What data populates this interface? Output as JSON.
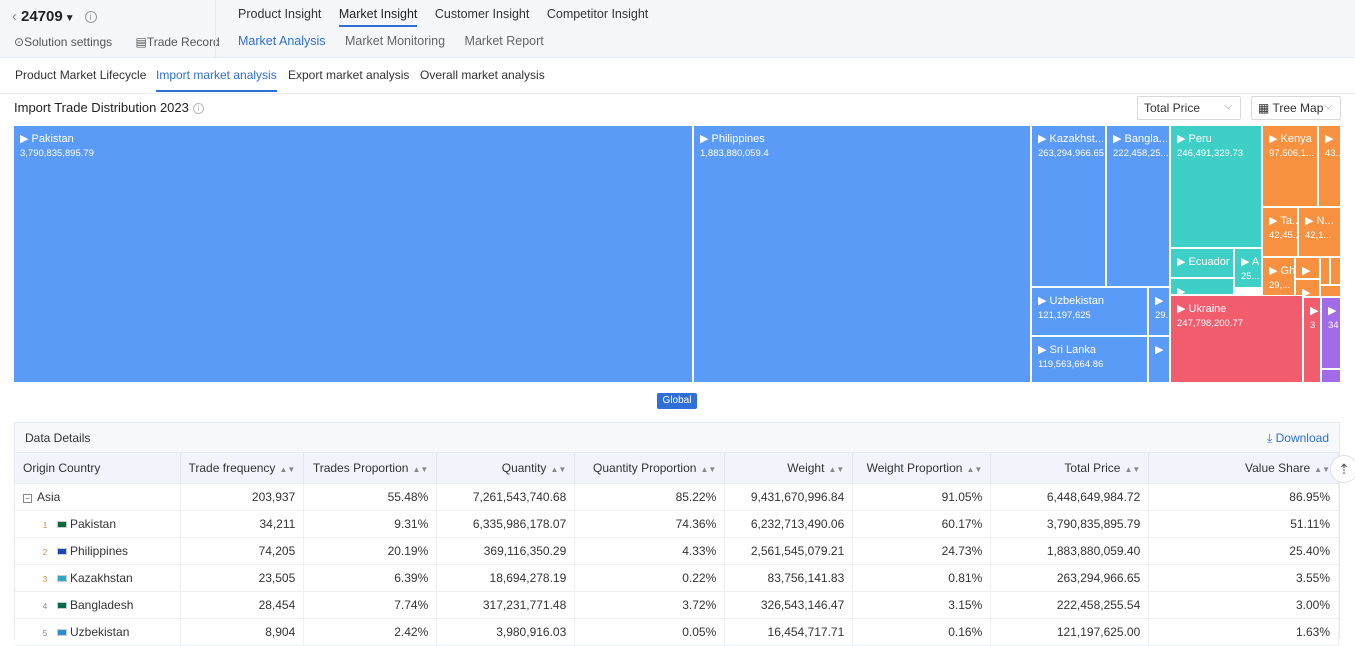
{
  "header": {
    "code": "24709",
    "settings_label": "Solution settings",
    "trade_record_label": "Trade Record",
    "main_tabs": [
      "Product Insight",
      "Market Insight",
      "Customer Insight",
      "Competitor Insight"
    ],
    "sub_tabs": [
      "Market Analysis",
      "Market Monitoring",
      "Market Report"
    ]
  },
  "analysis_tabs": [
    "Product Market Lifecycle",
    "Import market analysis",
    "Export market analysis",
    "Overall market analysis"
  ],
  "section": {
    "title": "Import Trade Distribution 2023",
    "metric_select": "Total Price",
    "view_select": "Tree Map",
    "global_label": "Global"
  },
  "treemap": [
    {
      "name": "▶ Pakistan",
      "value": "3,790,835,895.79",
      "color": "#5b9bf8"
    },
    {
      "name": "▶ Philippines",
      "value": "1,883,880,059.4",
      "color": "#5b9bf8"
    },
    {
      "name": "▶ Kazakhst...",
      "value": "263,294,966.65",
      "color": "#5b9bf8"
    },
    {
      "name": "▶ Bangla...",
      "value": "222,458,25...",
      "color": "#5b9bf8"
    },
    {
      "name": "▶ Uzbekistan",
      "value": "121,197,625",
      "color": "#5b9bf8"
    },
    {
      "name": "▶",
      "value": "29...",
      "color": "#5b9bf8"
    },
    {
      "name": "▶ Sri Lanka",
      "value": "119,563,664.86",
      "color": "#5b9bf8"
    },
    {
      "name": "▶",
      "value": "",
      "color": "#5b9bf8"
    },
    {
      "name": "▶ Peru",
      "value": "246,491,329.73",
      "color": "#3ecfc6"
    },
    {
      "name": "▶ Ecuador",
      "value": "",
      "color": "#3ecfc6"
    },
    {
      "name": "▶ A",
      "value": "25...",
      "color": "#3ecfc6"
    },
    {
      "name": "▶",
      "value": "",
      "color": "#3ecfc6"
    },
    {
      "name": "▶ Kenya",
      "value": "97,506,1...",
      "color": "#f7913f"
    },
    {
      "name": "▶",
      "value": "43...",
      "color": "#f7913f"
    },
    {
      "name": "▶ Ta...",
      "value": "42,45...",
      "color": "#f7913f"
    },
    {
      "name": "▶ N...",
      "value": "42,1...",
      "color": "#f7913f"
    },
    {
      "name": "▶ Gh",
      "value": "29,...",
      "color": "#f7913f"
    },
    {
      "name": "▶",
      "value": "",
      "color": "#f7913f"
    },
    {
      "name": "",
      "value": "",
      "color": "#f7913f"
    },
    {
      "name": "",
      "value": "",
      "color": "#f7913f"
    },
    {
      "name": "▶",
      "value": "",
      "color": "#f7913f"
    },
    {
      "name": "",
      "value": "",
      "color": "#f7913f"
    },
    {
      "name": "▶ Ukraine",
      "value": "247,798,200.77",
      "color": "#f25d6e"
    },
    {
      "name": "▶",
      "value": "3",
      "color": "#f25d6e"
    },
    {
      "name": "▶",
      "value": "34",
      "color": "#a26be8"
    },
    {
      "name": "",
      "value": "",
      "color": "#a26be8"
    }
  ],
  "details": {
    "title": "Data Details",
    "download_label": "Download",
    "columns": [
      "Origin Country",
      "Trade frequency",
      "Trades Proportion",
      "Quantity",
      "Quantity Proportion",
      "Weight",
      "Weight Proportion",
      "Total Price",
      "Value Share"
    ],
    "rows": [
      {
        "rank": "",
        "name": "Asia",
        "values": [
          "203,937",
          "55.48%",
          "7,261,543,740.68",
          "85.22%",
          "9,431,670,996.84",
          "91.05%",
          "6,448,649,984.72",
          "86.95%"
        ]
      },
      {
        "rank": "1",
        "name": "Pakistan",
        "values": [
          "34,211",
          "9.31%",
          "6,335,986,178.07",
          "74.36%",
          "6,232,713,490.06",
          "60.17%",
          "3,790,835,895.79",
          "51.11%"
        ]
      },
      {
        "rank": "2",
        "name": "Philippines",
        "values": [
          "74,205",
          "20.19%",
          "369,116,350.29",
          "4.33%",
          "2,561,545,079.21",
          "24.73%",
          "1,883,880,059.40",
          "25.40%"
        ]
      },
      {
        "rank": "3",
        "name": "Kazakhstan",
        "values": [
          "23,505",
          "6.39%",
          "18,694,278.19",
          "0.22%",
          "83,756,141.83",
          "0.81%",
          "263,294,966.65",
          "3.55%"
        ]
      },
      {
        "rank": "4",
        "name": "Bangladesh",
        "values": [
          "28,454",
          "7.74%",
          "317,231,771.48",
          "3.72%",
          "326,543,146.47",
          "3.15%",
          "222,458,255.54",
          "3.00%"
        ]
      },
      {
        "rank": "5",
        "name": "Uzbekistan",
        "values": [
          "8,904",
          "2.42%",
          "3,980,916.03",
          "0.05%",
          "16,454,717.71",
          "0.16%",
          "121,197,625.00",
          "1.63%"
        ]
      }
    ]
  },
  "colors": {
    "accent": "#2f6fd8"
  }
}
